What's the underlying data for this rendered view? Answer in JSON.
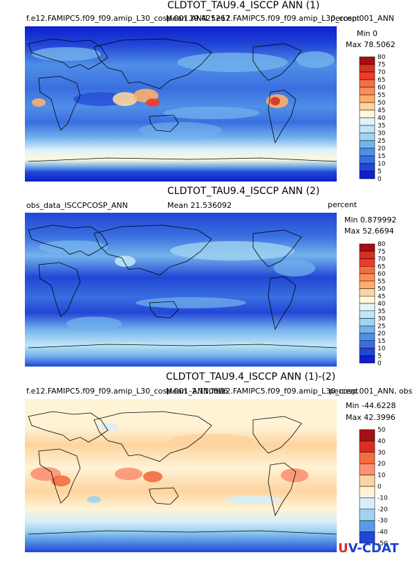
{
  "panels": [
    {
      "title": "CLDTOT_TAU9.4_ISCCP ANN (1)",
      "left_label": "f.e12.FAMIPC5.f09_f09.amip_L30_cosp.001.ANN",
      "mean_label": "Mean 19.425267",
      "overlap_label": "f.e12.FAMIPC5.f09_f09.amip_L30_cosp.001_ANN",
      "units": "percent",
      "min_label": "Min 0",
      "max_label": "Max 78.5062",
      "colorbar": {
        "ticks": [
          "80",
          "75",
          "70",
          "65",
          "60",
          "55",
          "50",
          "45",
          "40",
          "35",
          "30",
          "25",
          "20",
          "15",
          "10",
          "5",
          "0"
        ],
        "colors": [
          "#a50f15",
          "#d7301f",
          "#ef3b2c",
          "#f46d43",
          "#fb8d59",
          "#fdae6b",
          "#fdd49e",
          "#fff7dc",
          "#e0f3f8",
          "#bfe6f6",
          "#9fd3f0",
          "#74b3ec",
          "#4f8fe6",
          "#3a6ee0",
          "#2146d6",
          "#0d1fcf"
        ]
      }
    },
    {
      "title": "CLDTOT_TAU9.4_ISCCP ANN (2)",
      "left_label": "obs_data_ISCCPCOSP_ANN",
      "mean_label": "Mean 21.536092",
      "units": "percent",
      "min_label": "Min 0.879992",
      "max_label": "Max 52.6694",
      "colorbar": {
        "ticks": [
          "80",
          "75",
          "70",
          "65",
          "60",
          "55",
          "50",
          "45",
          "40",
          "35",
          "30",
          "25",
          "20",
          "15",
          "10",
          "5",
          "0"
        ],
        "colors": [
          "#a50f15",
          "#d7301f",
          "#ef3b2c",
          "#f46d43",
          "#fb8d59",
          "#fdae6b",
          "#fdd49e",
          "#fff7dc",
          "#e0f3f8",
          "#bfe6f6",
          "#9fd3f0",
          "#74b3ec",
          "#4f8fe6",
          "#3a6ee0",
          "#2146d6",
          "#0d1fcf"
        ]
      }
    },
    {
      "title": "CLDTOT_TAU9.4_ISCCP ANN (1)-(2)",
      "left_label": "f.e12.FAMIPC5.f09_f09.amip_L30_cosp.001_ANN, ob",
      "mean_label": "Mean -2.110826",
      "overlap_label": "f.e12.FAMIPC5.f09_f09.amip_L30_cosp.001_ANN, obs",
      "units": "percent",
      "min_label": "Min -44.6228",
      "max_label": "Max 42.3996",
      "colorbar": {
        "ticks": [
          "50",
          "40",
          "30",
          "20",
          "10",
          "0",
          "-10",
          "-20",
          "-30",
          "-40",
          "-50"
        ],
        "colors": [
          "#a50f15",
          "#d7301f",
          "#f46d43",
          "#fc9272",
          "#fdd49e",
          "#fff3d6",
          "#d6eefa",
          "#9fd3f0",
          "#5a9ae8",
          "#2146d6"
        ]
      }
    }
  ],
  "logo": {
    "text": "UV-CDAT",
    "u_color": "#d73027",
    "v_color": "#1a3fd4",
    "cdat_color": "#1a3fd4"
  },
  "chart_data": [
    {
      "type": "heatmap",
      "title": "CLDTOT_TAU9.4_ISCCP ANN (1)",
      "units": "percent",
      "min": 0,
      "max": 78.5062,
      "mean": 19.425267,
      "color_levels": [
        0,
        5,
        10,
        15,
        20,
        25,
        30,
        35,
        40,
        45,
        50,
        55,
        60,
        65,
        70,
        75,
        80
      ],
      "grid": false,
      "legend": "right"
    },
    {
      "type": "heatmap",
      "title": "CLDTOT_TAU9.4_ISCCP ANN (2)",
      "units": "percent",
      "min": 0.879992,
      "max": 52.6694,
      "mean": 21.536092,
      "color_levels": [
        0,
        5,
        10,
        15,
        20,
        25,
        30,
        35,
        40,
        45,
        50,
        55,
        60,
        65,
        70,
        75,
        80
      ],
      "grid": false,
      "legend": "right"
    },
    {
      "type": "heatmap",
      "title": "CLDTOT_TAU9.4_ISCCP ANN (1)-(2)",
      "units": "percent",
      "min": -44.6228,
      "max": 42.3996,
      "mean": -2.110826,
      "color_levels": [
        -50,
        -40,
        -30,
        -20,
        -10,
        0,
        10,
        20,
        30,
        40,
        50
      ],
      "grid": false,
      "legend": "right"
    }
  ]
}
